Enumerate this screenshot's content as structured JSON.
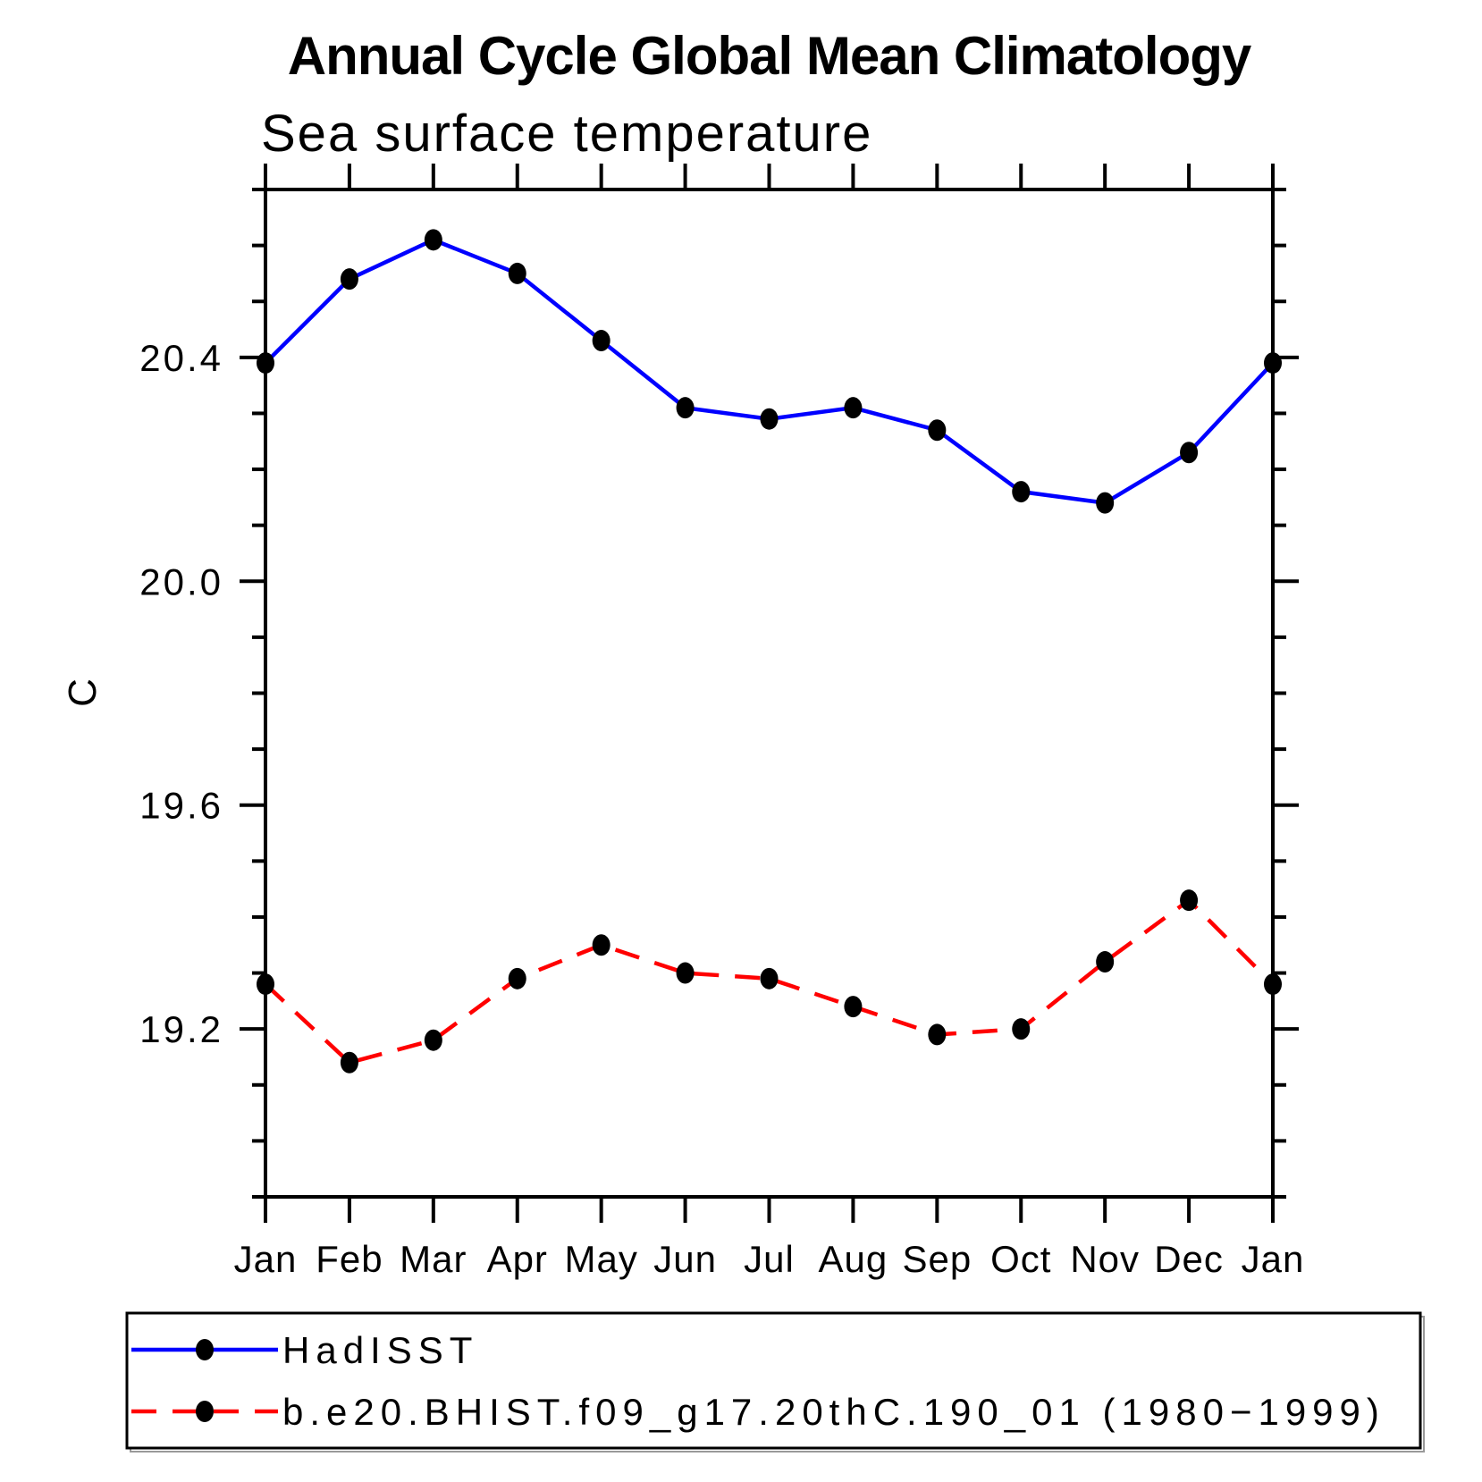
{
  "chart_data": {
    "type": "line",
    "title": "Annual Cycle Global Mean Climatology",
    "subtitle": "Sea surface temperature",
    "ylabel": "C",
    "categories": [
      "Jan",
      "Feb",
      "Mar",
      "Apr",
      "May",
      "Jun",
      "Jul",
      "Aug",
      "Sep",
      "Oct",
      "Nov",
      "Dec",
      "Jan"
    ],
    "series": [
      {
        "name": "HadISST",
        "color": "#0000ff",
        "line_style": "solid",
        "marker": "filled-circle",
        "marker_color": "#000000",
        "values": [
          20.39,
          20.54,
          20.61,
          20.55,
          20.43,
          20.31,
          20.29,
          20.31,
          20.27,
          20.16,
          20.14,
          20.23,
          20.39
        ]
      },
      {
        "name": "b.e20.BHIST.f09_g17.20thC.190_01 (1980−1999)",
        "color": "#ff0000",
        "line_style": "dashed",
        "marker": "filled-circle",
        "marker_color": "#000000",
        "values": [
          19.28,
          19.14,
          19.18,
          19.29,
          19.35,
          19.3,
          19.29,
          19.24,
          19.19,
          19.2,
          19.32,
          19.43,
          19.28
        ]
      }
    ],
    "xlabel": "",
    "ylim": [
      18.9,
      20.7
    ],
    "yticks_major": [
      19.2,
      19.6,
      20.0,
      20.4
    ],
    "ytick_labels": [
      "19.2",
      "19.6",
      "20.0",
      "20.4"
    ],
    "ytick_minor_step": 0.1,
    "grid": false,
    "legend_position": "bottom-left-box",
    "axis_color": "#000000"
  }
}
